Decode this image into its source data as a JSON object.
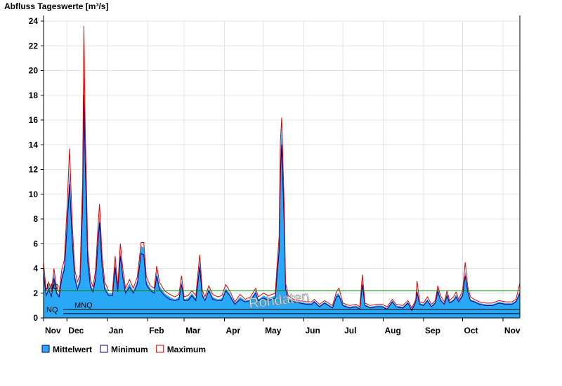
{
  "chart_data": {
    "type": "area",
    "title": "Abfluss Tageswerte [m³/s]",
    "x": [
      0,
      2,
      4,
      6,
      8,
      10,
      12,
      14,
      16,
      18,
      20,
      22,
      24,
      26,
      28,
      30,
      31,
      32,
      34,
      36,
      38,
      40,
      42,
      43,
      45,
      47,
      50,
      53,
      55,
      57,
      59,
      61,
      63,
      66,
      69,
      72,
      75,
      77,
      79,
      82,
      85,
      87,
      89,
      93,
      97,
      101,
      104,
      106,
      108,
      111,
      114,
      117,
      120,
      122,
      124,
      127,
      130,
      134,
      137,
      140,
      143,
      147,
      151,
      155,
      159,
      163,
      165,
      169,
      173,
      178,
      181,
      182,
      183,
      185,
      186,
      188,
      192,
      197,
      202,
      206,
      208,
      212,
      216,
      222,
      225,
      227,
      230,
      235,
      240,
      243,
      245,
      247,
      251,
      256,
      260,
      264,
      268,
      271,
      276,
      280,
      283,
      286,
      287,
      289,
      292,
      295,
      298,
      301,
      303,
      305,
      308,
      310,
      312,
      315,
      317,
      319,
      322,
      324,
      326,
      328,
      331,
      335,
      340,
      345,
      350,
      355,
      360,
      363,
      366
    ],
    "series": [
      {
        "name": "Mittelwert",
        "color": "#29a8f5",
        "style": "area",
        "values": [
          4.0,
          2.0,
          2.6,
          1.9,
          3.6,
          2.2,
          1.9,
          3.5,
          4.3,
          8.0,
          12.0,
          7.0,
          3.5,
          2.6,
          3.2,
          10.0,
          20.0,
          14.0,
          5.0,
          2.8,
          2.3,
          3.5,
          7.0,
          8.5,
          4.5,
          2.6,
          2.0,
          2.0,
          4.5,
          2.3,
          5.5,
          3.5,
          2.2,
          2.8,
          2.2,
          3.0,
          5.8,
          5.7,
          3.0,
          2.4,
          2.2,
          3.8,
          2.6,
          2.0,
          1.7,
          1.5,
          1.7,
          3.0,
          1.5,
          1.6,
          2.0,
          1.6,
          4.6,
          2.0,
          1.5,
          2.4,
          1.7,
          1.5,
          1.6,
          2.4,
          2.0,
          1.2,
          1.7,
          1.4,
          1.5,
          2.2,
          1.5,
          1.8,
          1.6,
          1.8,
          6.0,
          13.0,
          15.5,
          8.0,
          2.5,
          1.6,
          1.4,
          1.3,
          1.2,
          1.2,
          1.4,
          1.0,
          1.3,
          0.9,
          1.9,
          2.0,
          1.1,
          0.9,
          1.0,
          0.8,
          3.0,
          1.1,
          0.9,
          1.0,
          1.0,
          0.8,
          1.4,
          1.0,
          0.9,
          1.3,
          0.7,
          1.4,
          2.3,
          1.2,
          1.1,
          1.5,
          1.0,
          1.3,
          2.4,
          1.6,
          1.2,
          2.0,
          1.3,
          1.5,
          1.9,
          1.4,
          2.0,
          3.8,
          2.3,
          1.5,
          1.4,
          1.2,
          1.1,
          1.1,
          1.3,
          1.2,
          1.2,
          1.4,
          2.2
        ]
      },
      {
        "name": "Minimum",
        "color": "#000080",
        "style": "line",
        "values": [
          3.6,
          1.8,
          2.3,
          1.7,
          3.2,
          2.0,
          1.7,
          3.2,
          3.9,
          7.2,
          10.8,
          6.3,
          3.2,
          2.3,
          2.9,
          9.0,
          18.0,
          12.6,
          4.5,
          2.5,
          2.1,
          3.2,
          6.3,
          7.7,
          4.1,
          2.3,
          1.8,
          1.8,
          4.1,
          2.1,
          5.0,
          3.2,
          2.0,
          2.5,
          2.0,
          2.7,
          5.2,
          5.1,
          2.7,
          2.2,
          2.0,
          3.4,
          2.3,
          1.8,
          1.5,
          1.4,
          1.5,
          2.7,
          1.4,
          1.4,
          1.8,
          1.4,
          4.1,
          1.8,
          1.4,
          2.2,
          1.5,
          1.4,
          1.4,
          2.2,
          1.8,
          1.1,
          1.5,
          1.3,
          1.4,
          2.0,
          1.4,
          1.6,
          1.4,
          1.6,
          5.4,
          11.7,
          14.0,
          7.2,
          2.3,
          1.4,
          1.3,
          1.2,
          1.1,
          1.1,
          1.3,
          0.9,
          1.2,
          0.8,
          1.7,
          1.8,
          1.0,
          0.8,
          0.9,
          0.7,
          2.7,
          1.0,
          0.8,
          0.9,
          0.9,
          0.7,
          1.3,
          0.9,
          0.8,
          1.2,
          0.6,
          1.3,
          2.1,
          1.1,
          1.0,
          1.4,
          0.9,
          1.2,
          2.2,
          1.4,
          1.1,
          1.8,
          1.2,
          1.4,
          1.7,
          1.3,
          1.8,
          3.4,
          2.1,
          1.4,
          1.3,
          1.1,
          1.0,
          1.0,
          1.2,
          1.1,
          1.1,
          1.3,
          2.0
        ]
      },
      {
        "name": "Maximum",
        "color": "#e00000",
        "style": "line",
        "values": [
          4.5,
          2.2,
          2.9,
          2.1,
          4.0,
          2.4,
          2.1,
          3.9,
          4.7,
          8.8,
          13.7,
          7.7,
          3.9,
          2.9,
          3.5,
          11.0,
          23.6,
          15.4,
          5.5,
          3.1,
          2.5,
          3.9,
          7.7,
          9.2,
          5.0,
          2.9,
          2.2,
          2.2,
          5.0,
          2.5,
          6.0,
          3.9,
          2.4,
          3.1,
          2.4,
          3.3,
          6.1,
          6.1,
          3.3,
          2.6,
          2.4,
          4.2,
          2.9,
          2.2,
          1.9,
          1.7,
          1.9,
          3.4,
          1.7,
          1.8,
          2.2,
          1.8,
          5.1,
          2.2,
          1.7,
          2.6,
          1.9,
          1.7,
          1.8,
          2.7,
          2.2,
          1.3,
          1.9,
          1.5,
          1.7,
          2.4,
          1.7,
          2.0,
          1.8,
          2.0,
          6.6,
          14.3,
          16.2,
          8.8,
          2.8,
          1.8,
          1.5,
          1.4,
          1.3,
          1.3,
          1.5,
          1.1,
          1.4,
          1.0,
          2.1,
          2.4,
          1.2,
          1.0,
          1.1,
          0.9,
          3.5,
          1.2,
          1.0,
          1.1,
          1.1,
          0.9,
          1.5,
          1.1,
          1.0,
          1.4,
          0.8,
          1.5,
          3.0,
          1.3,
          1.2,
          1.7,
          1.1,
          1.4,
          2.6,
          1.8,
          1.3,
          2.2,
          1.4,
          1.7,
          2.1,
          1.5,
          2.2,
          4.5,
          2.5,
          1.7,
          1.5,
          1.3,
          1.2,
          1.2,
          1.4,
          1.3,
          1.3,
          1.5,
          2.8
        ]
      }
    ],
    "xlim": [
      0,
      366
    ],
    "xticks": [
      {
        "value": 0,
        "label": "Nov"
      },
      {
        "value": 18,
        "label": "Dec"
      },
      {
        "value": 49,
        "label": "Jan"
      },
      {
        "value": 80,
        "label": "Feb"
      },
      {
        "value": 108,
        "label": "Mar"
      },
      {
        "value": 139,
        "label": "Apr"
      },
      {
        "value": 169,
        "label": "May"
      },
      {
        "value": 200,
        "label": "Jun"
      },
      {
        "value": 230,
        "label": "Jul"
      },
      {
        "value": 261,
        "label": "Aug"
      },
      {
        "value": 292,
        "label": "Sep"
      },
      {
        "value": 322,
        "label": "Oct"
      },
      {
        "value": 353,
        "label": "Nov"
      }
    ],
    "ylim": [
      0,
      24
    ],
    "yticks": [
      0,
      2,
      4,
      6,
      8,
      10,
      12,
      14,
      16,
      18,
      20,
      22,
      24
    ],
    "grid": true,
    "reference_lines": [
      {
        "label": "MQ",
        "value": 2.2,
        "color": "#008000"
      },
      {
        "label": "MNQ",
        "value": 0.7,
        "color": "#000000"
      },
      {
        "label": "NQ",
        "value": 0.35,
        "color": "#000000"
      }
    ],
    "watermark": "Rohdaten"
  }
}
